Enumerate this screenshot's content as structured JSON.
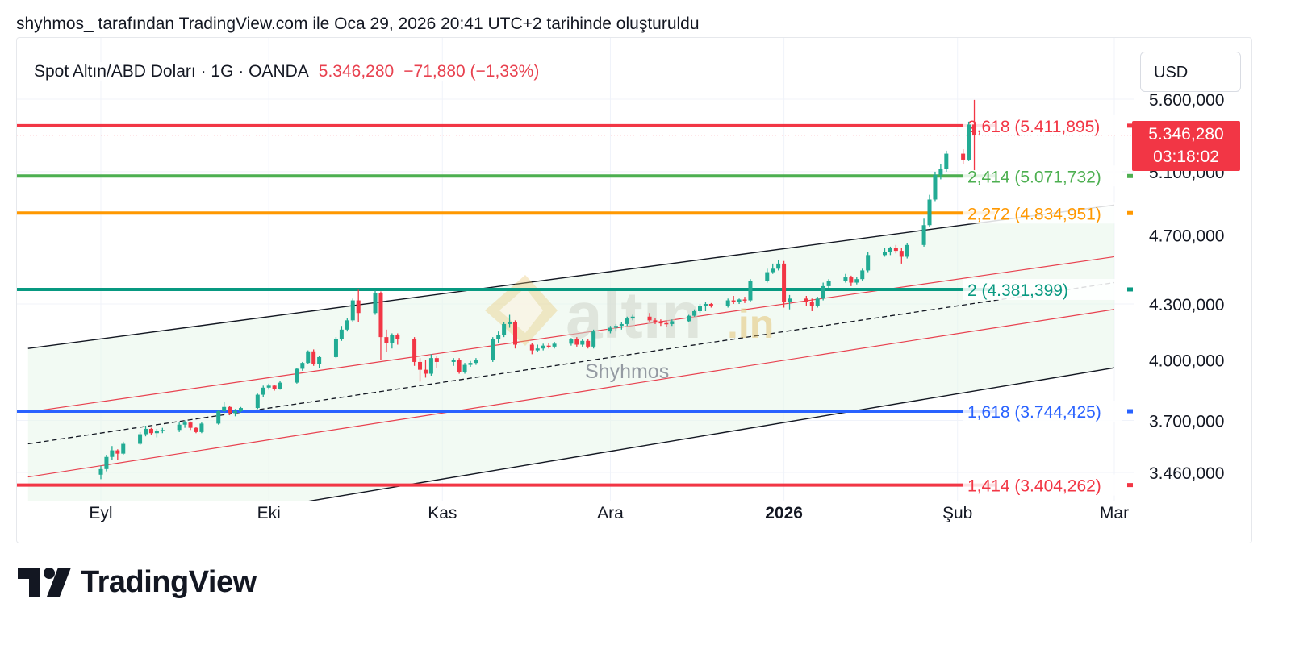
{
  "header_caption": "shyhmos_ tarafından TradingView.com ile Oca 29, 2026 20:41 UTC+2 tarihinde oluşturuldu",
  "legend": {
    "symbol": "Spot Altın/ABD Doları · 1G · OANDA",
    "last": "5.346,280",
    "change": "−71,880 (−1,33%)"
  },
  "currency_button": "USD",
  "price_tag": {
    "price": "5.346,280",
    "countdown": "03:18:02"
  },
  "watermark": {
    "main": "altın",
    "suffix": ".in",
    "author": "Shyhmos"
  },
  "brand": "TradingView",
  "colors": {
    "up": "#22ab94",
    "down": "#f23645",
    "fib_2618": "#f23645",
    "fib_2414": "#4caf50",
    "fib_2272": "#ff9800",
    "fib_2": "#089981",
    "fib_1618": "#2962ff",
    "fib_1414": "#f23645"
  },
  "chart_data": {
    "type": "candlestick",
    "y_axis": {
      "position": "right",
      "tick_values": [
        5600,
        5100,
        4700,
        4300,
        4000,
        3700,
        3460
      ],
      "tick_labels": [
        "5.600,000",
        "5.100,000",
        "4.700,000",
        "4.300,000",
        "4.000,000",
        "3.700,000",
        "3.460,000"
      ],
      "scale": "log"
    },
    "x_axis": {
      "tick_labels": [
        "Eyl",
        "Eki",
        "Kas",
        "Ara",
        "2026",
        "Şub",
        "Mar"
      ],
      "tick_dates": [
        "2025-09-01",
        "2025-10-01",
        "2025-11-01",
        "2025-12-01",
        "2026-01-01",
        "2026-02-01",
        "2026-03-01"
      ],
      "range": [
        "2025-08-19",
        "2026-03-01"
      ]
    },
    "fib_levels": [
      {
        "ratio": "2,618",
        "price": 5411.895,
        "label": "2,618 (5.411,895)",
        "color": "#f23645"
      },
      {
        "ratio": "2,414",
        "price": 5071.732,
        "label": "2,414 (5.071,732)",
        "color": "#4caf50"
      },
      {
        "ratio": "2,272",
        "price": 4834.951,
        "label": "2,272 (4.834,951)",
        "color": "#ff9800"
      },
      {
        "ratio": "2",
        "price": 4381.399,
        "label": "2 (4.381,399)",
        "color": "#089981"
      },
      {
        "ratio": "1,618",
        "price": 3744.425,
        "label": "1,618 (3.744,425)",
        "color": "#2962ff"
      },
      {
        "ratio": "1,414",
        "price": 3404.262,
        "label": "1,414 (3.404,262)",
        "color": "#f23645"
      }
    ],
    "channel": {
      "start_date": "2025-08-19",
      "end_date": "2026-03-01",
      "upper": [
        4060,
        4885
      ],
      "upper_inner": [
        3740,
        4570
      ],
      "mid": [
        3590,
        4420
      ],
      "lower_inner": [
        3440,
        4270
      ],
      "lower": [
        3140,
        3960
      ]
    },
    "current_price": 5346.28,
    "candles": [
      {
        "d": "2025-09-01",
        "o": 3450,
        "h": 3490,
        "l": 3430,
        "c": 3475
      },
      {
        "d": "2025-09-02",
        "o": 3475,
        "h": 3540,
        "l": 3465,
        "c": 3530
      },
      {
        "d": "2025-09-03",
        "o": 3530,
        "h": 3580,
        "l": 3515,
        "c": 3560
      },
      {
        "d": "2025-09-04",
        "o": 3560,
        "h": 3565,
        "l": 3515,
        "c": 3545
      },
      {
        "d": "2025-09-05",
        "o": 3545,
        "h": 3600,
        "l": 3540,
        "c": 3590
      },
      {
        "d": "2025-09-08",
        "o": 3590,
        "h": 3645,
        "l": 3585,
        "c": 3635
      },
      {
        "d": "2025-09-09",
        "o": 3635,
        "h": 3675,
        "l": 3625,
        "c": 3660
      },
      {
        "d": "2025-09-10",
        "o": 3660,
        "h": 3665,
        "l": 3630,
        "c": 3640
      },
      {
        "d": "2025-09-11",
        "o": 3640,
        "h": 3660,
        "l": 3620,
        "c": 3650
      },
      {
        "d": "2025-09-12",
        "o": 3650,
        "h": 3665,
        "l": 3640,
        "c": 3655
      },
      {
        "d": "2025-09-15",
        "o": 3655,
        "h": 3690,
        "l": 3645,
        "c": 3680
      },
      {
        "d": "2025-09-16",
        "o": 3680,
        "h": 3700,
        "l": 3665,
        "c": 3690
      },
      {
        "d": "2025-09-17",
        "o": 3690,
        "h": 3695,
        "l": 3655,
        "c": 3665
      },
      {
        "d": "2025-09-18",
        "o": 3665,
        "h": 3670,
        "l": 3640,
        "c": 3645
      },
      {
        "d": "2025-09-19",
        "o": 3645,
        "h": 3690,
        "l": 3640,
        "c": 3685
      },
      {
        "d": "2025-09-22",
        "o": 3685,
        "h": 3750,
        "l": 3680,
        "c": 3745
      },
      {
        "d": "2025-09-23",
        "o": 3745,
        "h": 3790,
        "l": 3735,
        "c": 3765
      },
      {
        "d": "2025-09-24",
        "o": 3765,
        "h": 3770,
        "l": 3725,
        "c": 3735
      },
      {
        "d": "2025-09-25",
        "o": 3735,
        "h": 3755,
        "l": 3720,
        "c": 3745
      },
      {
        "d": "2025-09-26",
        "o": 3745,
        "h": 3765,
        "l": 3740,
        "c": 3760
      },
      {
        "d": "2025-09-29",
        "o": 3760,
        "h": 3830,
        "l": 3755,
        "c": 3825
      },
      {
        "d": "2025-09-30",
        "o": 3825,
        "h": 3870,
        "l": 3815,
        "c": 3860
      },
      {
        "d": "2025-10-01",
        "o": 3860,
        "h": 3880,
        "l": 3850,
        "c": 3870
      },
      {
        "d": "2025-10-02",
        "o": 3870,
        "h": 3875,
        "l": 3845,
        "c": 3855
      },
      {
        "d": "2025-10-03",
        "o": 3855,
        "h": 3895,
        "l": 3850,
        "c": 3885
      },
      {
        "d": "2025-10-06",
        "o": 3885,
        "h": 3960,
        "l": 3880,
        "c": 3955
      },
      {
        "d": "2025-10-07",
        "o": 3955,
        "h": 3990,
        "l": 3945,
        "c": 3985
      },
      {
        "d": "2025-10-08",
        "o": 3985,
        "h": 4050,
        "l": 3980,
        "c": 4045
      },
      {
        "d": "2025-10-09",
        "o": 4045,
        "h": 4055,
        "l": 3970,
        "c": 3980
      },
      {
        "d": "2025-10-10",
        "o": 3980,
        "h": 4020,
        "l": 3960,
        "c": 4015
      },
      {
        "d": "2025-10-13",
        "o": 4015,
        "h": 4120,
        "l": 4010,
        "c": 4110
      },
      {
        "d": "2025-10-14",
        "o": 4110,
        "h": 4180,
        "l": 4100,
        "c": 4160
      },
      {
        "d": "2025-10-15",
        "o": 4160,
        "h": 4220,
        "l": 4150,
        "c": 4210
      },
      {
        "d": "2025-10-16",
        "o": 4210,
        "h": 4330,
        "l": 4200,
        "c": 4320
      },
      {
        "d": "2025-10-17",
        "o": 4320,
        "h": 4380,
        "l": 4200,
        "c": 4250
      },
      {
        "d": "2025-10-20",
        "o": 4250,
        "h": 4375,
        "l": 4240,
        "c": 4360
      },
      {
        "d": "2025-10-21",
        "o": 4360,
        "h": 4370,
        "l": 4000,
        "c": 4120
      },
      {
        "d": "2025-10-22",
        "o": 4120,
        "h": 4160,
        "l": 4040,
        "c": 4090
      },
      {
        "d": "2025-10-23",
        "o": 4090,
        "h": 4140,
        "l": 4060,
        "c": 4130
      },
      {
        "d": "2025-10-24",
        "o": 4130,
        "h": 4140,
        "l": 4080,
        "c": 4110
      },
      {
        "d": "2025-10-27",
        "o": 4110,
        "h": 4120,
        "l": 3970,
        "c": 3990
      },
      {
        "d": "2025-10-28",
        "o": 3990,
        "h": 4010,
        "l": 3890,
        "c": 3950
      },
      {
        "d": "2025-10-29",
        "o": 3950,
        "h": 4000,
        "l": 3910,
        "c": 3930
      },
      {
        "d": "2025-10-30",
        "o": 3930,
        "h": 4030,
        "l": 3920,
        "c": 4010
      },
      {
        "d": "2025-10-31",
        "o": 4010,
        "h": 4020,
        "l": 3960,
        "c": 3990
      },
      {
        "d": "2025-11-03",
        "o": 3990,
        "h": 4010,
        "l": 3970,
        "c": 4000
      },
      {
        "d": "2025-11-04",
        "o": 4000,
        "h": 4010,
        "l": 3930,
        "c": 3940
      },
      {
        "d": "2025-11-05",
        "o": 3940,
        "h": 3985,
        "l": 3930,
        "c": 3975
      },
      {
        "d": "2025-11-06",
        "o": 3975,
        "h": 3995,
        "l": 3965,
        "c": 3985
      },
      {
        "d": "2025-11-07",
        "o": 3985,
        "h": 4010,
        "l": 3975,
        "c": 4000
      },
      {
        "d": "2025-11-10",
        "o": 4000,
        "h": 4120,
        "l": 3990,
        "c": 4110
      },
      {
        "d": "2025-11-11",
        "o": 4110,
        "h": 4150,
        "l": 4090,
        "c": 4130
      },
      {
        "d": "2025-11-12",
        "o": 4130,
        "h": 4200,
        "l": 4120,
        "c": 4190
      },
      {
        "d": "2025-11-13",
        "o": 4190,
        "h": 4240,
        "l": 4170,
        "c": 4200
      },
      {
        "d": "2025-11-14",
        "o": 4200,
        "h": 4210,
        "l": 4060,
        "c": 4080
      },
      {
        "d": "2025-11-17",
        "o": 4080,
        "h": 4090,
        "l": 4030,
        "c": 4050
      },
      {
        "d": "2025-11-18",
        "o": 4050,
        "h": 4080,
        "l": 4040,
        "c": 4060
      },
      {
        "d": "2025-11-19",
        "o": 4060,
        "h": 4085,
        "l": 4050,
        "c": 4075
      },
      {
        "d": "2025-11-20",
        "o": 4075,
        "h": 4090,
        "l": 4060,
        "c": 4070
      },
      {
        "d": "2025-11-21",
        "o": 4070,
        "h": 4095,
        "l": 4060,
        "c": 4085
      },
      {
        "d": "2025-11-24",
        "o": 4085,
        "h": 4115,
        "l": 4075,
        "c": 4110
      },
      {
        "d": "2025-11-25",
        "o": 4110,
        "h": 4120,
        "l": 4070,
        "c": 4080
      },
      {
        "d": "2025-11-26",
        "o": 4080,
        "h": 4110,
        "l": 4070,
        "c": 4100
      },
      {
        "d": "2025-11-27",
        "o": 4100,
        "h": 4110,
        "l": 4060,
        "c": 4070
      },
      {
        "d": "2025-11-28",
        "o": 4070,
        "h": 4160,
        "l": 4060,
        "c": 4150
      },
      {
        "d": "2025-12-01",
        "o": 4150,
        "h": 4180,
        "l": 4140,
        "c": 4170
      },
      {
        "d": "2025-12-02",
        "o": 4170,
        "h": 4190,
        "l": 4150,
        "c": 4180
      },
      {
        "d": "2025-12-03",
        "o": 4180,
        "h": 4200,
        "l": 4160,
        "c": 4190
      },
      {
        "d": "2025-12-04",
        "o": 4190,
        "h": 4230,
        "l": 4180,
        "c": 4220
      },
      {
        "d": "2025-12-05",
        "o": 4220,
        "h": 4240,
        "l": 4210,
        "c": 4230
      },
      {
        "d": "2025-12-08",
        "o": 4230,
        "h": 4250,
        "l": 4200,
        "c": 4210
      },
      {
        "d": "2025-12-09",
        "o": 4210,
        "h": 4220,
        "l": 4190,
        "c": 4200
      },
      {
        "d": "2025-12-10",
        "o": 4200,
        "h": 4215,
        "l": 4180,
        "c": 4195
      },
      {
        "d": "2025-12-11",
        "o": 4195,
        "h": 4210,
        "l": 4175,
        "c": 4190
      },
      {
        "d": "2025-12-12",
        "o": 4190,
        "h": 4215,
        "l": 4180,
        "c": 4205
      },
      {
        "d": "2025-12-15",
        "o": 4205,
        "h": 4240,
        "l": 4200,
        "c": 4235
      },
      {
        "d": "2025-12-16",
        "o": 4235,
        "h": 4270,
        "l": 4230,
        "c": 4260
      },
      {
        "d": "2025-12-17",
        "o": 4260,
        "h": 4300,
        "l": 4250,
        "c": 4290
      },
      {
        "d": "2025-12-18",
        "o": 4290,
        "h": 4310,
        "l": 4260,
        "c": 4300
      },
      {
        "d": "2025-12-19",
        "o": 4300,
        "h": 4305,
        "l": 4280,
        "c": 4290
      },
      {
        "d": "2025-12-22",
        "o": 4290,
        "h": 4330,
        "l": 4280,
        "c": 4320
      },
      {
        "d": "2025-12-23",
        "o": 4320,
        "h": 4345,
        "l": 4300,
        "c": 4310
      },
      {
        "d": "2025-12-24",
        "o": 4310,
        "h": 4330,
        "l": 4300,
        "c": 4325
      },
      {
        "d": "2025-12-25",
        "o": 4325,
        "h": 4340,
        "l": 4305,
        "c": 4320
      },
      {
        "d": "2025-12-26",
        "o": 4320,
        "h": 4440,
        "l": 4310,
        "c": 4430
      },
      {
        "d": "2025-12-29",
        "o": 4430,
        "h": 4500,
        "l": 4420,
        "c": 4480
      },
      {
        "d": "2025-12-30",
        "o": 4480,
        "h": 4530,
        "l": 4470,
        "c": 4500
      },
      {
        "d": "2025-12-31",
        "o": 4500,
        "h": 4550,
        "l": 4490,
        "c": 4530
      },
      {
        "d": "2026-01-01",
        "o": 4530,
        "h": 4545,
        "l": 4280,
        "c": 4310
      },
      {
        "d": "2026-01-02",
        "o": 4310,
        "h": 4350,
        "l": 4270,
        "c": 4330
      },
      {
        "d": "2026-01-05",
        "o": 4330,
        "h": 4345,
        "l": 4290,
        "c": 4310
      },
      {
        "d": "2026-01-06",
        "o": 4310,
        "h": 4330,
        "l": 4260,
        "c": 4290
      },
      {
        "d": "2026-01-07",
        "o": 4290,
        "h": 4340,
        "l": 4280,
        "c": 4330
      },
      {
        "d": "2026-01-08",
        "o": 4330,
        "h": 4420,
        "l": 4320,
        "c": 4400
      },
      {
        "d": "2026-01-09",
        "o": 4400,
        "h": 4440,
        "l": 4390,
        "c": 4430
      },
      {
        "d": "2026-01-12",
        "o": 4430,
        "h": 4470,
        "l": 4420,
        "c": 4450
      },
      {
        "d": "2026-01-13",
        "o": 4450,
        "h": 4460,
        "l": 4400,
        "c": 4420
      },
      {
        "d": "2026-01-14",
        "o": 4420,
        "h": 4450,
        "l": 4410,
        "c": 4440
      },
      {
        "d": "2026-01-15",
        "o": 4440,
        "h": 4500,
        "l": 4430,
        "c": 4490
      },
      {
        "d": "2026-01-16",
        "o": 4490,
        "h": 4600,
        "l": 4480,
        "c": 4580
      },
      {
        "d": "2026-01-19",
        "o": 4580,
        "h": 4620,
        "l": 4570,
        "c": 4600
      },
      {
        "d": "2026-01-20",
        "o": 4600,
        "h": 4630,
        "l": 4580,
        "c": 4620
      },
      {
        "d": "2026-01-21",
        "o": 4620,
        "h": 4640,
        "l": 4590,
        "c": 4605
      },
      {
        "d": "2026-01-22",
        "o": 4605,
        "h": 4620,
        "l": 4530,
        "c": 4570
      },
      {
        "d": "2026-01-23",
        "o": 4570,
        "h": 4650,
        "l": 4560,
        "c": 4640
      },
      {
        "d": "2026-01-26",
        "o": 4640,
        "h": 4800,
        "l": 4630,
        "c": 4760
      },
      {
        "d": "2026-01-27",
        "o": 4760,
        "h": 4950,
        "l": 4750,
        "c": 4920
      },
      {
        "d": "2026-01-28",
        "o": 4920,
        "h": 5100,
        "l": 4910,
        "c": 5080
      },
      {
        "d": "2026-01-29",
        "o": 5080,
        "h": 5150,
        "l": 5050,
        "c": 5120
      },
      {
        "d": "2026-01-30",
        "o": 5120,
        "h": 5240,
        "l": 5100,
        "c": 5220
      },
      {
        "d": "2026-02-02",
        "o": 5220,
        "h": 5250,
        "l": 5150,
        "c": 5180
      },
      {
        "d": "2026-02-03",
        "o": 5180,
        "h": 5440,
        "l": 5170,
        "c": 5420
      },
      {
        "d": "2026-02-04",
        "o": 5420,
        "h": 5595,
        "l": 5110,
        "c": 5346.28
      }
    ]
  }
}
